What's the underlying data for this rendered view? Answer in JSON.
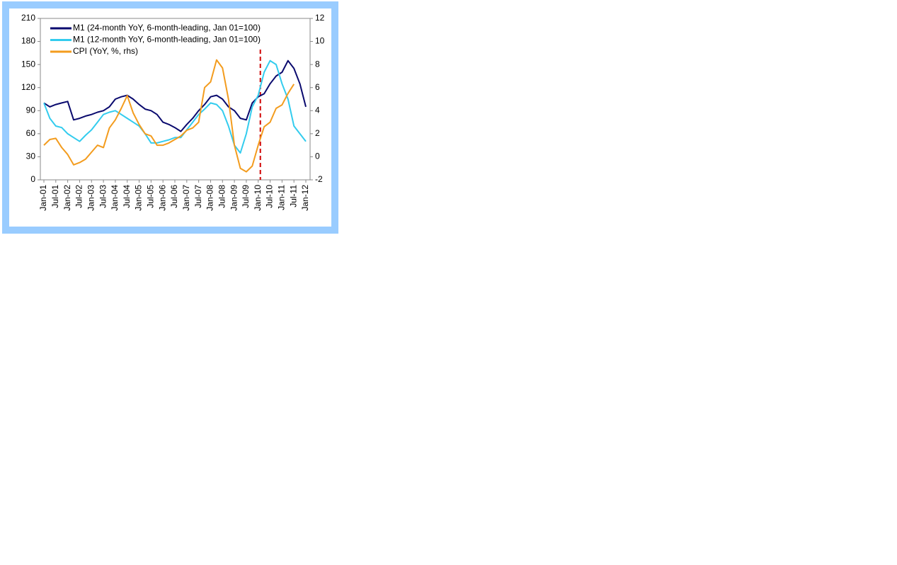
{
  "chart_data": {
    "type": "line",
    "categories": [
      "Jan-01",
      null,
      "Jul-01",
      null,
      "Jan-02",
      null,
      "Jul-02",
      null,
      "Jan-03",
      null,
      "Jul-03",
      null,
      "Jan-04",
      null,
      "Jul-04",
      null,
      "Jan-05",
      null,
      "Jul-05",
      null,
      "Jan-06",
      null,
      "Jul-06",
      null,
      "Jan-07",
      null,
      "Jul-07",
      null,
      "Jan-08",
      null,
      "Jul-08",
      null,
      "Jan-09",
      null,
      "Jul-09",
      null,
      "Jan-10",
      null,
      "Jul-10",
      null,
      "Jan-11",
      null,
      "Jul-11",
      null,
      "Jan-12"
    ],
    "series": [
      {
        "name": "M1 (24-month YoY, 6-month-leading, Jan 01=100)",
        "color": "#0a0a6e",
        "values": [
          100,
          95,
          98,
          100,
          102,
          78,
          80,
          83,
          85,
          88,
          90,
          95,
          105,
          108,
          110,
          105,
          98,
          92,
          90,
          85,
          75,
          72,
          68,
          63,
          72,
          80,
          90,
          98,
          108,
          110,
          105,
          95,
          90,
          80,
          78,
          100,
          108,
          112,
          125,
          135,
          140,
          155,
          145,
          125,
          95
        ]
      },
      {
        "name": "M1 (12-month YoY, 6-month-leading, Jan 01=100)",
        "color": "#33ccee",
        "values": [
          100,
          80,
          70,
          68,
          60,
          55,
          50,
          58,
          65,
          75,
          85,
          88,
          90,
          85,
          80,
          75,
          70,
          60,
          48,
          48,
          50,
          52,
          55,
          55,
          65,
          75,
          85,
          92,
          100,
          98,
          90,
          70,
          45,
          35,
          60,
          95,
          110,
          140,
          155,
          150,
          125,
          105,
          70,
          60,
          50
        ]
      },
      {
        "name": "CPI (YoY, %, rhs)",
        "color": "#f39c1e",
        "axis": "y2",
        "values": [
          1.0,
          1.5,
          1.6,
          0.8,
          0.2,
          -0.7,
          -0.5,
          -0.2,
          0.4,
          1.0,
          0.8,
          2.5,
          3.2,
          4.2,
          5.3,
          3.8,
          2.8,
          2.0,
          1.8,
          1.0,
          1.0,
          1.2,
          1.5,
          1.8,
          2.3,
          2.5,
          3.0,
          6.0,
          6.5,
          8.4,
          7.7,
          5.0,
          1.0,
          -1.0,
          -1.3,
          -0.8,
          1.0,
          2.6,
          3.0,
          4.2,
          4.5,
          5.5,
          6.3,
          null,
          null
        ]
      }
    ],
    "ylim": [
      0,
      210
    ],
    "yticks": [
      0,
      30,
      60,
      90,
      120,
      150,
      180,
      210
    ],
    "y2lim": [
      -2,
      12
    ],
    "y2ticks": [
      -2,
      0,
      2,
      4,
      6,
      8,
      10,
      12
    ],
    "vline": {
      "x": "Jan-10",
      "color": "#d00000",
      "dashed": true
    },
    "grid": false,
    "legend": "upper left"
  }
}
